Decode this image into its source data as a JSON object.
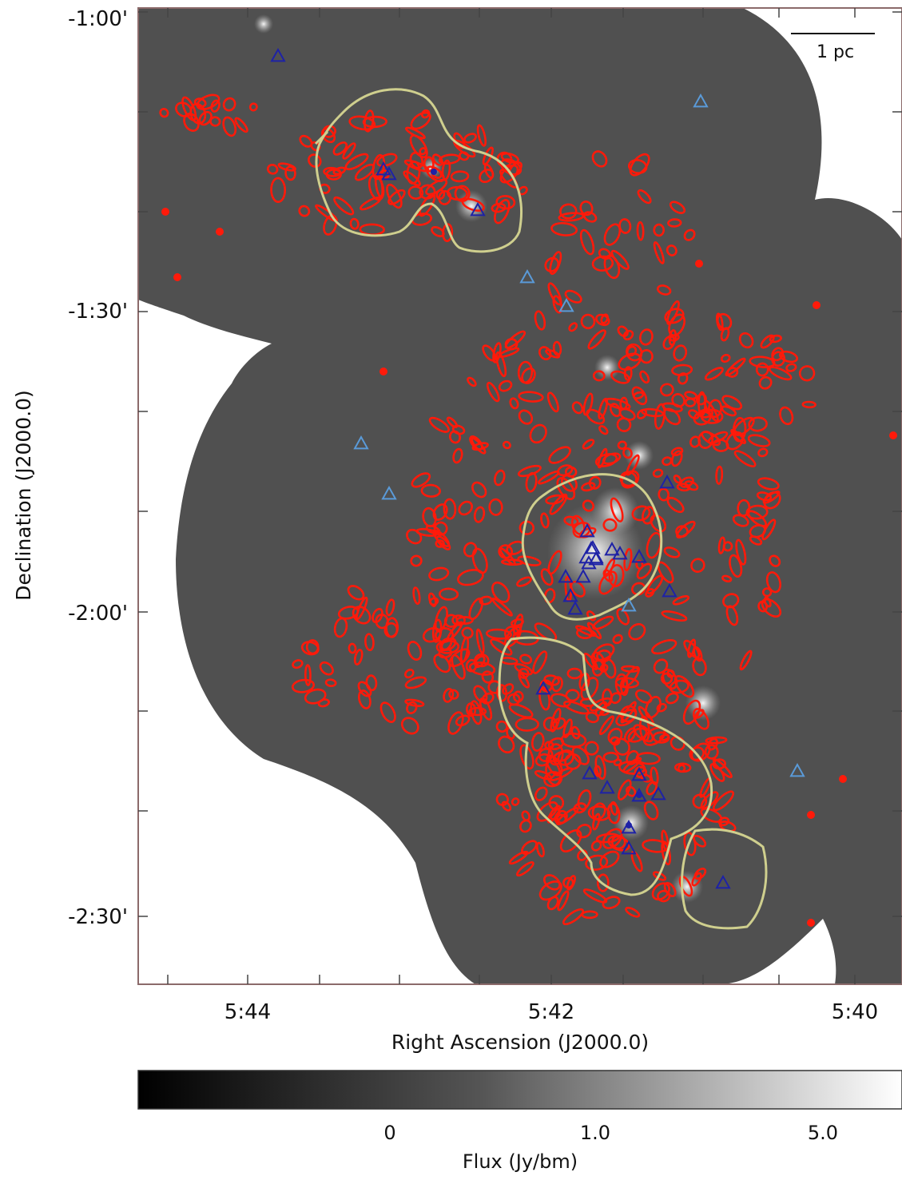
{
  "figure": {
    "y_axis": {
      "title": "Declination (J2000.0)",
      "ticks": [
        "-1:00'",
        "-1:30'",
        "-2:00'",
        "-2:30'"
      ]
    },
    "x_axis": {
      "title": "Right Ascension (J2000.0)",
      "ticks": [
        "5:44",
        "5:42",
        "5:40"
      ]
    },
    "scale_bar": {
      "label": "1 pc"
    },
    "colorbar": {
      "title": "Flux (Jy/bm)",
      "ticks": [
        "0",
        "1.0",
        "5.0"
      ],
      "colormap": [
        "#000000",
        "#ffffff"
      ]
    },
    "colors": {
      "map_background": "#505050",
      "frame": "#8b6a6a",
      "dense_contours": "#ff1a0a",
      "cloud_outlines": "#cfcf8e",
      "source_markers": "#1e22a6",
      "source_markers_light": "#5a9ad8"
    }
  }
}
